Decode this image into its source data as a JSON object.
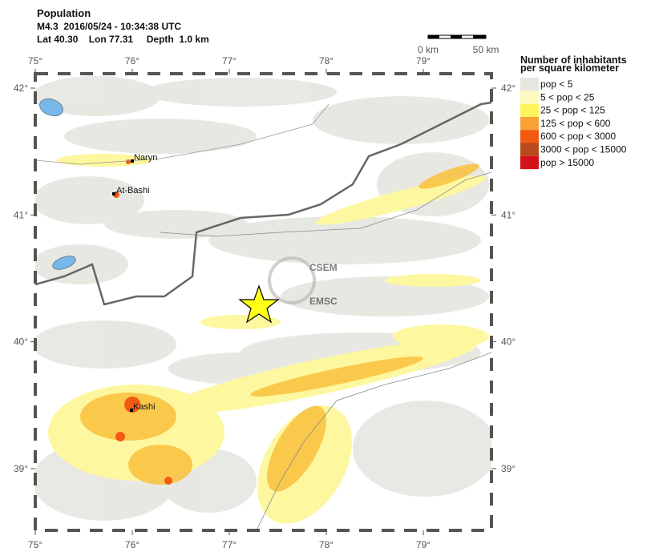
{
  "header": {
    "title": "Population",
    "line1": "M4.3  2016/05/24 - 10:34:38 UTC",
    "line2": "Lat 40.30    Lon 77.31     Depth  1.0 km"
  },
  "scale_bar": {
    "start": "0 km",
    "end": "50 km"
  },
  "axes": {
    "lon_ticks": [
      {
        "value": 75,
        "label": "75°"
      },
      {
        "value": 76,
        "label": "76°"
      },
      {
        "value": 77,
        "label": "77°"
      },
      {
        "value": 78,
        "label": "78°"
      },
      {
        "value": 79,
        "label": "79°"
      }
    ],
    "lat_ticks": [
      {
        "value": 42,
        "label": "42°"
      },
      {
        "value": 41,
        "label": "41°"
      },
      {
        "value": 40,
        "label": "40°"
      },
      {
        "value": 39,
        "label": "39°"
      }
    ]
  },
  "cities": [
    "Naryn",
    "At-Bashi",
    "Kashi"
  ],
  "watermark": [
    "CSEM",
    "EMSC"
  ],
  "legend": {
    "title": [
      "Number of inhabitants",
      "per square kilometer"
    ],
    "items": [
      {
        "label": "pop < 5",
        "color": "#e6e6e1"
      },
      {
        "label": "5 < pop < 25",
        "color": "#fdf9c2"
      },
      {
        "label": "25 < pop < 125",
        "color": "#fff45c"
      },
      {
        "label": "125 < pop < 600",
        "color": "#f7a136"
      },
      {
        "label": "600 < pop < 3000",
        "color": "#f25a12"
      },
      {
        "label": "3000 < pop < 15000",
        "color": "#b84a1c"
      },
      {
        "label": "pop > 15000",
        "color": "#d4121a"
      }
    ]
  }
}
